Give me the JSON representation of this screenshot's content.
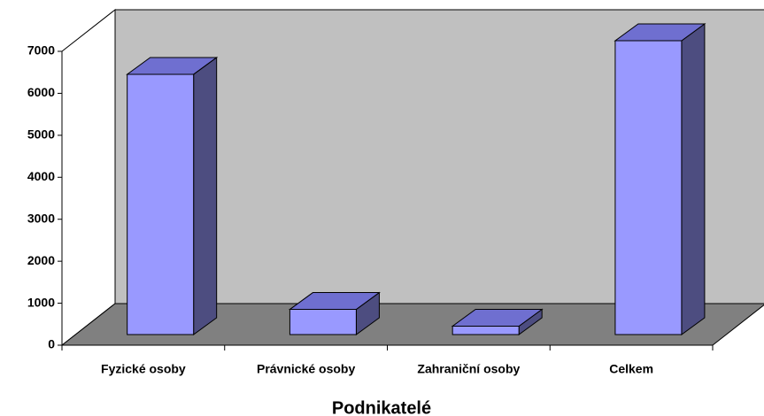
{
  "chart_data": {
    "type": "bar",
    "xlabel": "Podnikatelé",
    "categories": [
      "Fyzické osoby",
      "Právnické osoby",
      "Zahraniční osoby",
      "Celkem"
    ],
    "values": [
      6200,
      600,
      200,
      7000
    ],
    "color": "#9999ff",
    "ylim": [
      0,
      7000
    ],
    "yticks": [
      0,
      1000,
      2000,
      3000,
      4000,
      5000,
      6000,
      7000
    ]
  }
}
